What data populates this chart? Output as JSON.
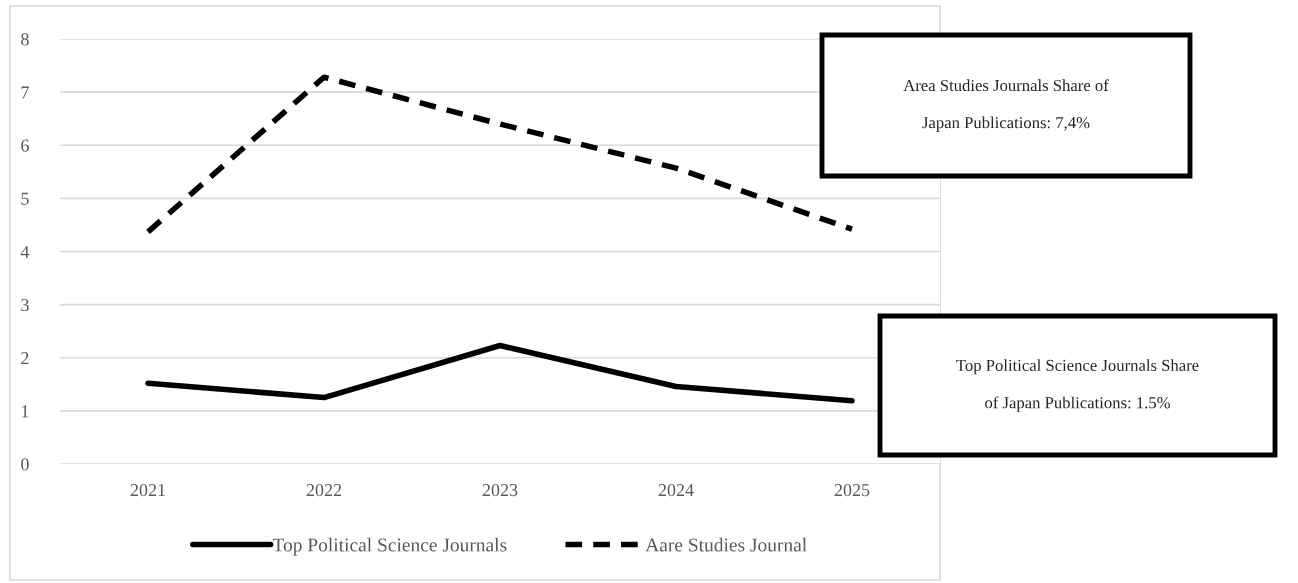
{
  "chart_data": {
    "type": "line",
    "categories": [
      "2021",
      "2022",
      "2023",
      "2024",
      "2025"
    ],
    "series": [
      {
        "name": "Top Political Science Journals",
        "color": "#000000",
        "line_style": "solid",
        "values": [
          1.52,
          1.25,
          2.23,
          1.46,
          1.19
        ]
      },
      {
        "name": "Aare Studies Journal",
        "color": "#000000",
        "line_style": "dashed",
        "values": [
          4.37,
          7.28,
          6.4,
          5.57,
          4.42
        ]
      }
    ],
    "ylim": [
      0,
      8
    ],
    "yticks": [
      0,
      1,
      2,
      3,
      4,
      5,
      6,
      7,
      8
    ],
    "grid": "y",
    "legend": "bottom",
    "marker": "none",
    "annotations": [
      "Area Studies Journals Share of\n\nJapan Publications: 7,4%",
      "Top Political Science Journals Share\n\nof Japan Publications: 1.5%"
    ]
  }
}
